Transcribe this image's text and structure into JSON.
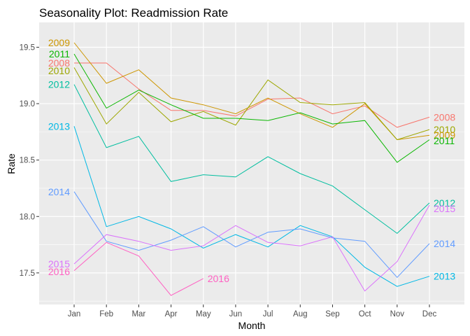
{
  "chart_data": {
    "type": "line",
    "title": "Seasonality Plot: Readmission Rate",
    "xlabel": "Month",
    "ylabel": "Rate",
    "categories": [
      "Jan",
      "Feb",
      "Mar",
      "Apr",
      "May",
      "Jun",
      "Jul",
      "Aug",
      "Sep",
      "Oct",
      "Nov",
      "Dec"
    ],
    "ylim": [
      17.22,
      19.72
    ],
    "yticks": [
      "17.5",
      "18.0",
      "18.5",
      "19.0",
      "19.5"
    ],
    "grid": true,
    "legend": "none",
    "series": [
      {
        "name": "2008",
        "color": "#F8766D",
        "values": [
          19.36,
          19.36,
          19.13,
          18.94,
          18.94,
          18.89,
          19.04,
          19.05,
          18.91,
          18.98,
          18.79,
          18.88
        ]
      },
      {
        "name": "2009",
        "color": "#CD9600",
        "values": [
          19.54,
          19.18,
          19.3,
          19.05,
          18.99,
          18.91,
          19.05,
          18.91,
          18.79,
          19.0,
          18.68,
          18.72
        ]
      },
      {
        "name": "2010",
        "color": "#9DA700",
        "values": [
          19.32,
          18.82,
          19.1,
          18.84,
          18.93,
          18.81,
          19.21,
          19.01,
          18.99,
          19.01,
          18.68,
          18.77
        ]
      },
      {
        "name": "2011",
        "color": "#0BB702",
        "values": [
          19.44,
          18.96,
          19.12,
          18.99,
          18.87,
          18.87,
          18.85,
          18.92,
          18.82,
          18.85,
          18.48,
          18.68
        ]
      },
      {
        "name": "2012",
        "color": "#00BE9F",
        "values": [
          19.17,
          18.61,
          18.71,
          18.31,
          18.37,
          18.35,
          18.53,
          18.38,
          18.27,
          18.06,
          17.85,
          18.12
        ]
      },
      {
        "name": "2013",
        "color": "#00B8E5",
        "values": [
          18.8,
          17.91,
          18.0,
          17.89,
          17.72,
          17.84,
          17.73,
          17.92,
          17.82,
          17.55,
          17.38,
          17.47
        ]
      },
      {
        "name": "2014",
        "color": "#619CFF",
        "values": [
          18.22,
          17.78,
          17.7,
          17.79,
          17.91,
          17.73,
          17.86,
          17.89,
          17.81,
          17.78,
          17.46,
          17.76
        ]
      },
      {
        "name": "2015",
        "color": "#DB72FB",
        "values": [
          17.58,
          17.84,
          17.78,
          17.7,
          17.74,
          17.92,
          17.77,
          17.74,
          17.82,
          17.34,
          17.6,
          18.1
        ]
      },
      {
        "name": "2016",
        "color": "#FF61C3",
        "values": [
          17.52,
          17.77,
          17.65,
          17.3,
          17.45,
          null,
          null,
          null,
          null,
          null,
          null,
          null
        ]
      }
    ],
    "start_labels": [
      {
        "text": "2009",
        "series": 1
      },
      {
        "text": "2011",
        "series": 3
      },
      {
        "text": "2008",
        "series": 0
      },
      {
        "text": "2010",
        "series": 2
      },
      {
        "text": "2012",
        "series": 4
      },
      {
        "text": "2013",
        "series": 5
      },
      {
        "text": "2014",
        "series": 6
      },
      {
        "text": "2015",
        "series": 7
      },
      {
        "text": "2016",
        "series": 8
      }
    ],
    "end_labels": [
      {
        "text": "2008",
        "series": 0
      },
      {
        "text": "2010",
        "series": 2
      },
      {
        "text": "2009",
        "series": 1
      },
      {
        "text": "2011",
        "series": 3
      },
      {
        "text": "2012",
        "series": 4
      },
      {
        "text": "2015",
        "series": 7
      },
      {
        "text": "2014",
        "series": 6
      },
      {
        "text": "2013",
        "series": 5
      },
      {
        "text": "2016",
        "series": 8
      }
    ]
  }
}
